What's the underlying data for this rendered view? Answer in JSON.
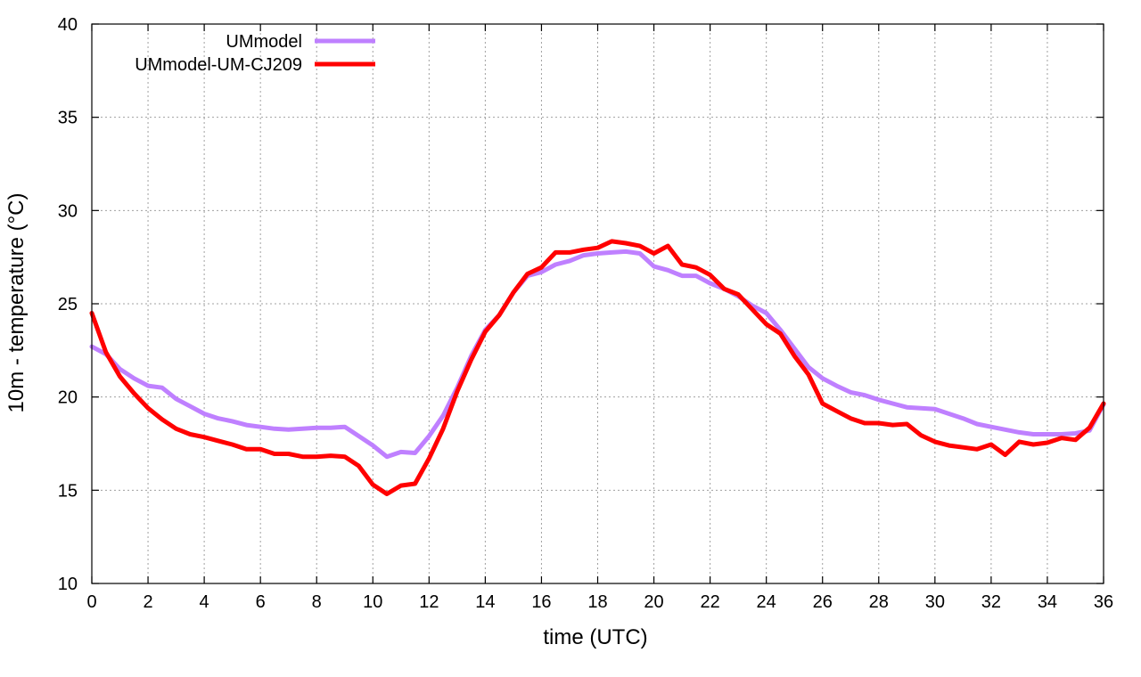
{
  "chart_data": {
    "type": "line",
    "title": "",
    "xlabel": "time (UTC)",
    "ylabel": "10m - temperature (°C)",
    "xlim": [
      0,
      36
    ],
    "ylim": [
      10,
      40
    ],
    "xticks": [
      0,
      2,
      4,
      6,
      8,
      10,
      12,
      14,
      16,
      18,
      20,
      22,
      24,
      26,
      28,
      30,
      32,
      34,
      36
    ],
    "yticks": [
      10,
      15,
      20,
      25,
      30,
      35,
      40
    ],
    "grid": true,
    "legend_position": "top-left",
    "series": [
      {
        "name": "UMmodel",
        "color": "#bf80ff",
        "x": [
          0,
          0.5,
          1,
          1.5,
          2,
          2.5,
          3,
          3.5,
          4,
          4.5,
          5,
          5.5,
          6,
          6.5,
          7,
          7.5,
          8,
          8.5,
          9,
          9.5,
          10,
          10.5,
          11,
          11.5,
          12,
          12.5,
          13,
          13.5,
          14,
          14.5,
          15,
          15.5,
          16,
          16.5,
          17,
          17.5,
          18,
          18.5,
          19,
          19.5,
          20,
          20.5,
          21,
          21.5,
          22,
          22.5,
          23,
          23.5,
          24,
          24.5,
          25,
          25.5,
          26,
          26.5,
          27,
          27.5,
          28,
          28.5,
          29,
          29.5,
          30,
          30.5,
          31,
          31.5,
          32,
          32.5,
          33,
          33.5,
          34,
          34.5,
          35,
          35.5,
          36
        ],
        "values": [
          22.7,
          22.3,
          21.5,
          21.0,
          20.6,
          20.5,
          19.9,
          19.5,
          19.1,
          18.85,
          18.7,
          18.5,
          18.4,
          18.3,
          18.25,
          18.3,
          18.35,
          18.35,
          18.4,
          17.9,
          17.4,
          16.8,
          17.05,
          17.0,
          17.9,
          19.0,
          20.5,
          22.2,
          23.6,
          24.4,
          25.6,
          26.5,
          26.7,
          27.1,
          27.3,
          27.6,
          27.7,
          27.75,
          27.8,
          27.7,
          27.0,
          26.8,
          26.5,
          26.5,
          26.1,
          25.8,
          25.4,
          24.9,
          24.5,
          23.6,
          22.6,
          21.6,
          21.0,
          20.6,
          20.25,
          20.1,
          19.85,
          19.65,
          19.45,
          19.4,
          19.35,
          19.1,
          18.85,
          18.55,
          18.4,
          18.25,
          18.1,
          18.0,
          18.0,
          18.0,
          18.05,
          18.2,
          19.6
        ]
      },
      {
        "name": "UMmodel-UM-CJ209",
        "color": "#ff0000",
        "x": [
          0,
          0.5,
          1,
          1.5,
          2,
          2.5,
          3,
          3.5,
          4,
          4.5,
          5,
          5.5,
          6,
          6.5,
          7,
          7.5,
          8,
          8.5,
          9,
          9.5,
          10,
          10.5,
          11,
          11.5,
          12,
          12.5,
          13,
          13.5,
          14,
          14.5,
          15,
          15.5,
          16,
          16.5,
          17,
          17.5,
          18,
          18.5,
          19,
          19.5,
          20,
          20.5,
          21,
          21.5,
          22,
          22.5,
          23,
          23.5,
          24,
          24.5,
          25,
          25.5,
          26,
          26.5,
          27,
          27.5,
          28,
          28.5,
          29,
          29.5,
          30,
          30.5,
          31,
          31.5,
          32,
          32.5,
          33,
          33.5,
          34,
          34.5,
          35,
          35.5,
          36
        ],
        "values": [
          24.5,
          22.4,
          21.1,
          20.2,
          19.4,
          18.8,
          18.3,
          18.0,
          17.85,
          17.65,
          17.45,
          17.2,
          17.2,
          16.95,
          16.95,
          16.8,
          16.8,
          16.85,
          16.8,
          16.3,
          15.3,
          14.8,
          15.25,
          15.35,
          16.7,
          18.3,
          20.3,
          22.0,
          23.5,
          24.4,
          25.6,
          26.6,
          26.95,
          27.75,
          27.75,
          27.9,
          28.0,
          28.35,
          28.25,
          28.1,
          27.7,
          28.1,
          27.1,
          26.95,
          26.55,
          25.8,
          25.5,
          24.7,
          23.9,
          23.4,
          22.2,
          21.2,
          19.65,
          19.25,
          18.85,
          18.6,
          18.6,
          18.5,
          18.55,
          17.95,
          17.6,
          17.4,
          17.3,
          17.2,
          17.45,
          16.9,
          17.6,
          17.45,
          17.55,
          17.8,
          17.7,
          18.35,
          19.65
        ]
      }
    ]
  }
}
